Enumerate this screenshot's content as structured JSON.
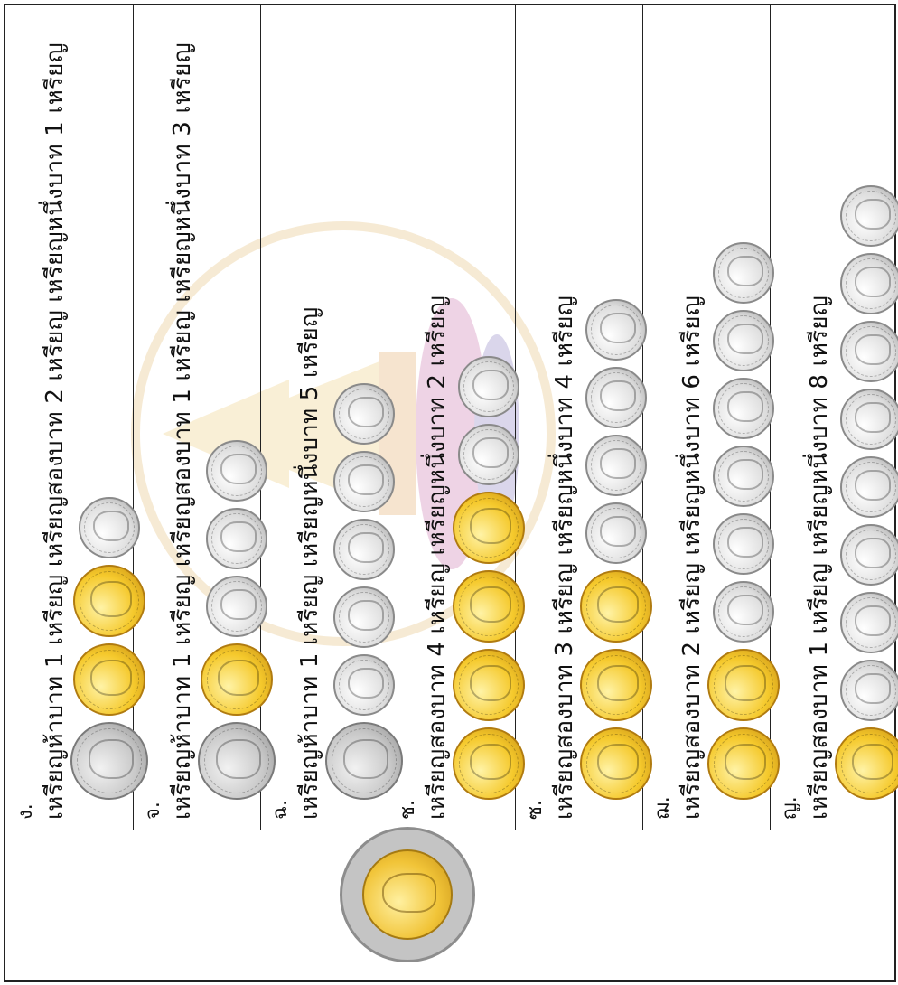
{
  "worksheet": {
    "rows": [
      {
        "label": "ง.",
        "description": "เหรียญห้าบาท 1 เหรียญ เหรียญสองบาท 2 เหรียญ เหรียญหนึ่งบาท 1 เหรียญ",
        "coins": [
          "5",
          "2",
          "2",
          "1"
        ]
      },
      {
        "label": "จ.",
        "description": "เหรียญห้าบาท 1 เหรียญ เหรียญสองบาท 1 เหรียญ เหรียญหนึ่งบาท 3 เหรียญ",
        "coins": [
          "5",
          "2",
          "1",
          "1",
          "1"
        ]
      },
      {
        "label": "ฉ.",
        "description": "เหรียญห้าบาท 1 เหรียญ เหรียญหนึ่งบาท 5 เหรียญ",
        "coins": [
          "5",
          "1",
          "1",
          "1",
          "1",
          "1"
        ]
      },
      {
        "label": "ช.",
        "description": "เหรียญสองบาท 4 เหรียญ เหรียญหนึ่งบาท 2 เหรียญ",
        "coins": [
          "2",
          "2",
          "2",
          "2",
          "1",
          "1"
        ]
      },
      {
        "label": "ซ.",
        "description": "เหรียญสองบาท 3 เหรียญ เหรียญหนึ่งบาท 4 เหรียญ",
        "coins": [
          "2",
          "2",
          "2",
          "1",
          "1",
          "1",
          "1"
        ]
      },
      {
        "label": "ฌ.",
        "description": "เหรียญสองบาท 2 เหรียญ เหรียญหนึ่งบาท 6 เหรียญ",
        "coins": [
          "2",
          "2",
          "1",
          "1",
          "1",
          "1",
          "1",
          "1"
        ]
      },
      {
        "label": "ญ.",
        "description": "เหรียญสองบาท 1 เหรียญ เหรียญหนึ่งบาท 8 เหรียญ",
        "coins": [
          "2",
          "1",
          "1",
          "1",
          "1",
          "1",
          "1",
          "1",
          "1"
        ]
      }
    ]
  },
  "colors": {
    "gold": "#f1c438",
    "silver": "#c9c9c9",
    "grid": "#222222"
  },
  "icons": {
    "ten_baht_coin": "ten-baht-coin-icon",
    "watermark": "school-emblem-watermark"
  }
}
